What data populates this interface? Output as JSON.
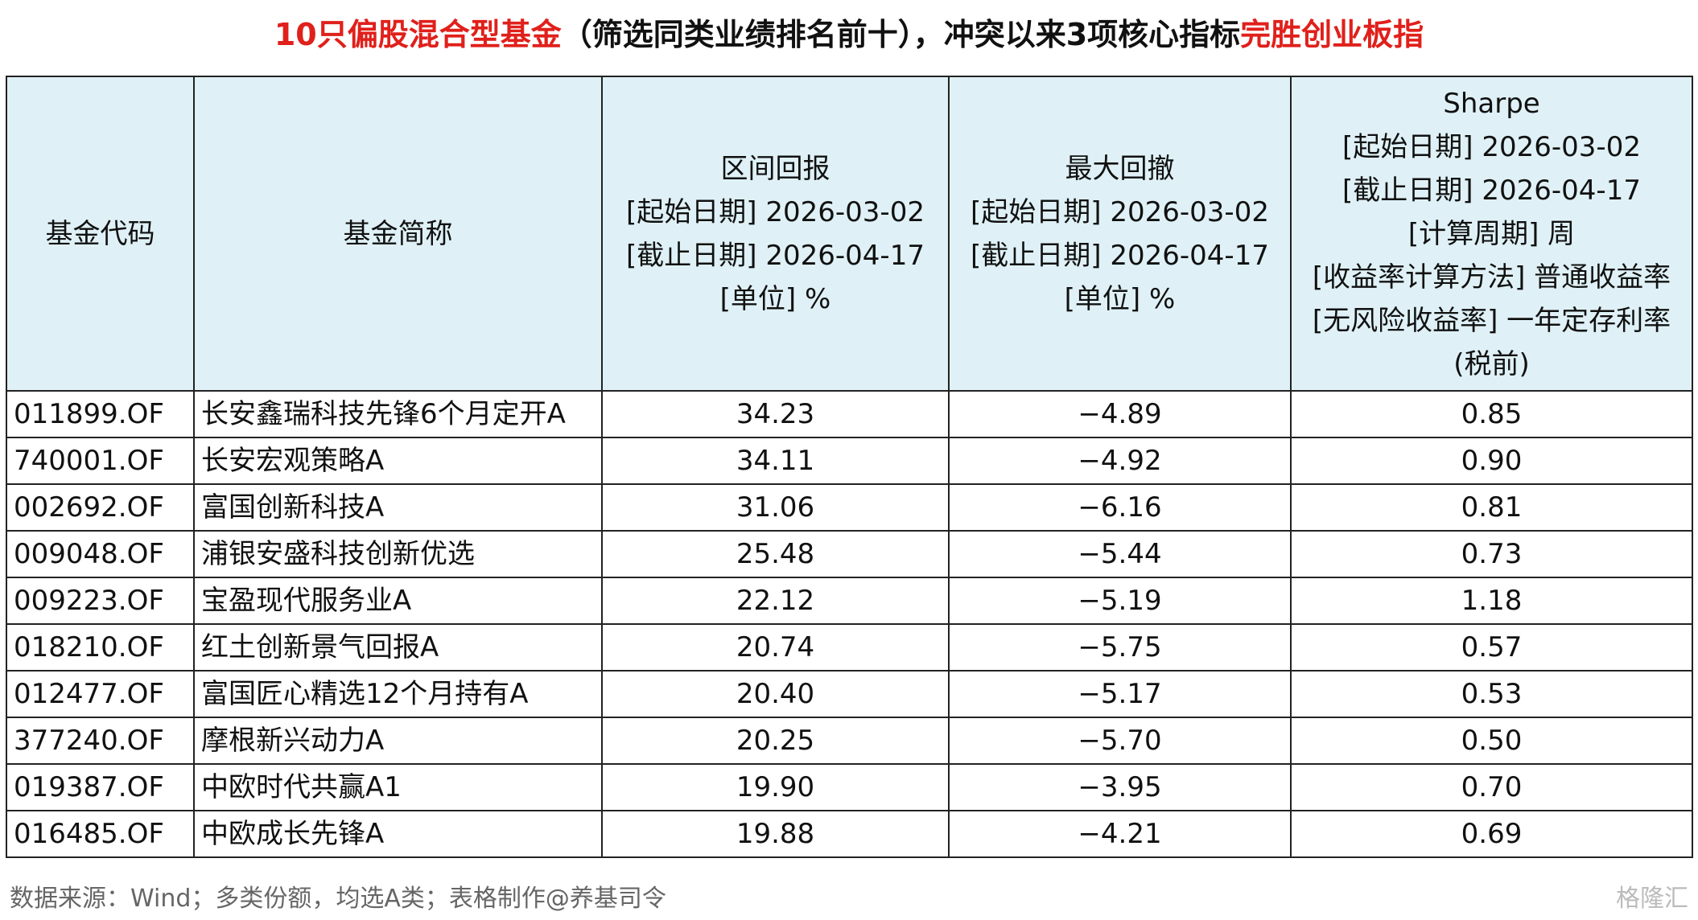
{
  "title": {
    "parts": [
      {
        "text": "10只偏股混合型基金",
        "color": "#e0201b"
      },
      {
        "text": "（筛选同类业绩排名前十），冲突以来3项核心指标",
        "color": "#111111"
      },
      {
        "text": "完胜创业板指",
        "color": "#e0201b"
      }
    ]
  },
  "table": {
    "header": [
      [
        "基金代码"
      ],
      [
        "基金简称"
      ],
      [
        "区间回报",
        "[起始日期] 2026-03-02",
        "[截止日期] 2026-04-17",
        "[单位] %"
      ],
      [
        "最大回撤",
        "[起始日期] 2026-03-02",
        "[截止日期] 2026-04-17",
        "[单位] %"
      ],
      [
        "Sharpe",
        "[起始日期] 2026-03-02",
        "[截止日期] 2026-04-17",
        "[计算周期] 周",
        "[收益率计算方法] 普通收益率",
        "[无风险收益率] 一年定存利率",
        "(税前)"
      ]
    ],
    "rows": [
      [
        "011899.OF",
        "长安鑫瑞科技先锋6个月定开A",
        "34.23",
        "−4.89",
        "0.85"
      ],
      [
        "740001.OF",
        "长安宏观策略A",
        "34.11",
        "−4.92",
        "0.90"
      ],
      [
        "002692.OF",
        "富国创新科技A",
        "31.06",
        "−6.16",
        "0.81"
      ],
      [
        "009048.OF",
        "浦银安盛科技创新优选",
        "25.48",
        "−5.44",
        "0.73"
      ],
      [
        "009223.OF",
        "宝盈现代服务业A",
        "22.12",
        "−5.19",
        "1.18"
      ],
      [
        "018210.OF",
        "红土创新景气回报A",
        "20.74",
        "−5.75",
        "0.57"
      ],
      [
        "012477.OF",
        "富国匠心精选12个月持有A",
        "20.40",
        "−5.17",
        "0.53"
      ],
      [
        "377240.OF",
        "摩根新兴动力A",
        "20.25",
        "−5.70",
        "0.50"
      ],
      [
        "019387.OF",
        "中欧时代共赢A1",
        "19.90",
        "−3.95",
        "0.70"
      ],
      [
        "016485.OF",
        "中欧成长先锋A",
        "19.88",
        "−4.21",
        "0.69"
      ]
    ]
  },
  "footer": {
    "source": "数据来源：Wind；多类份额，均选A类；表格制作@养基司令",
    "watermark": "格隆汇"
  }
}
